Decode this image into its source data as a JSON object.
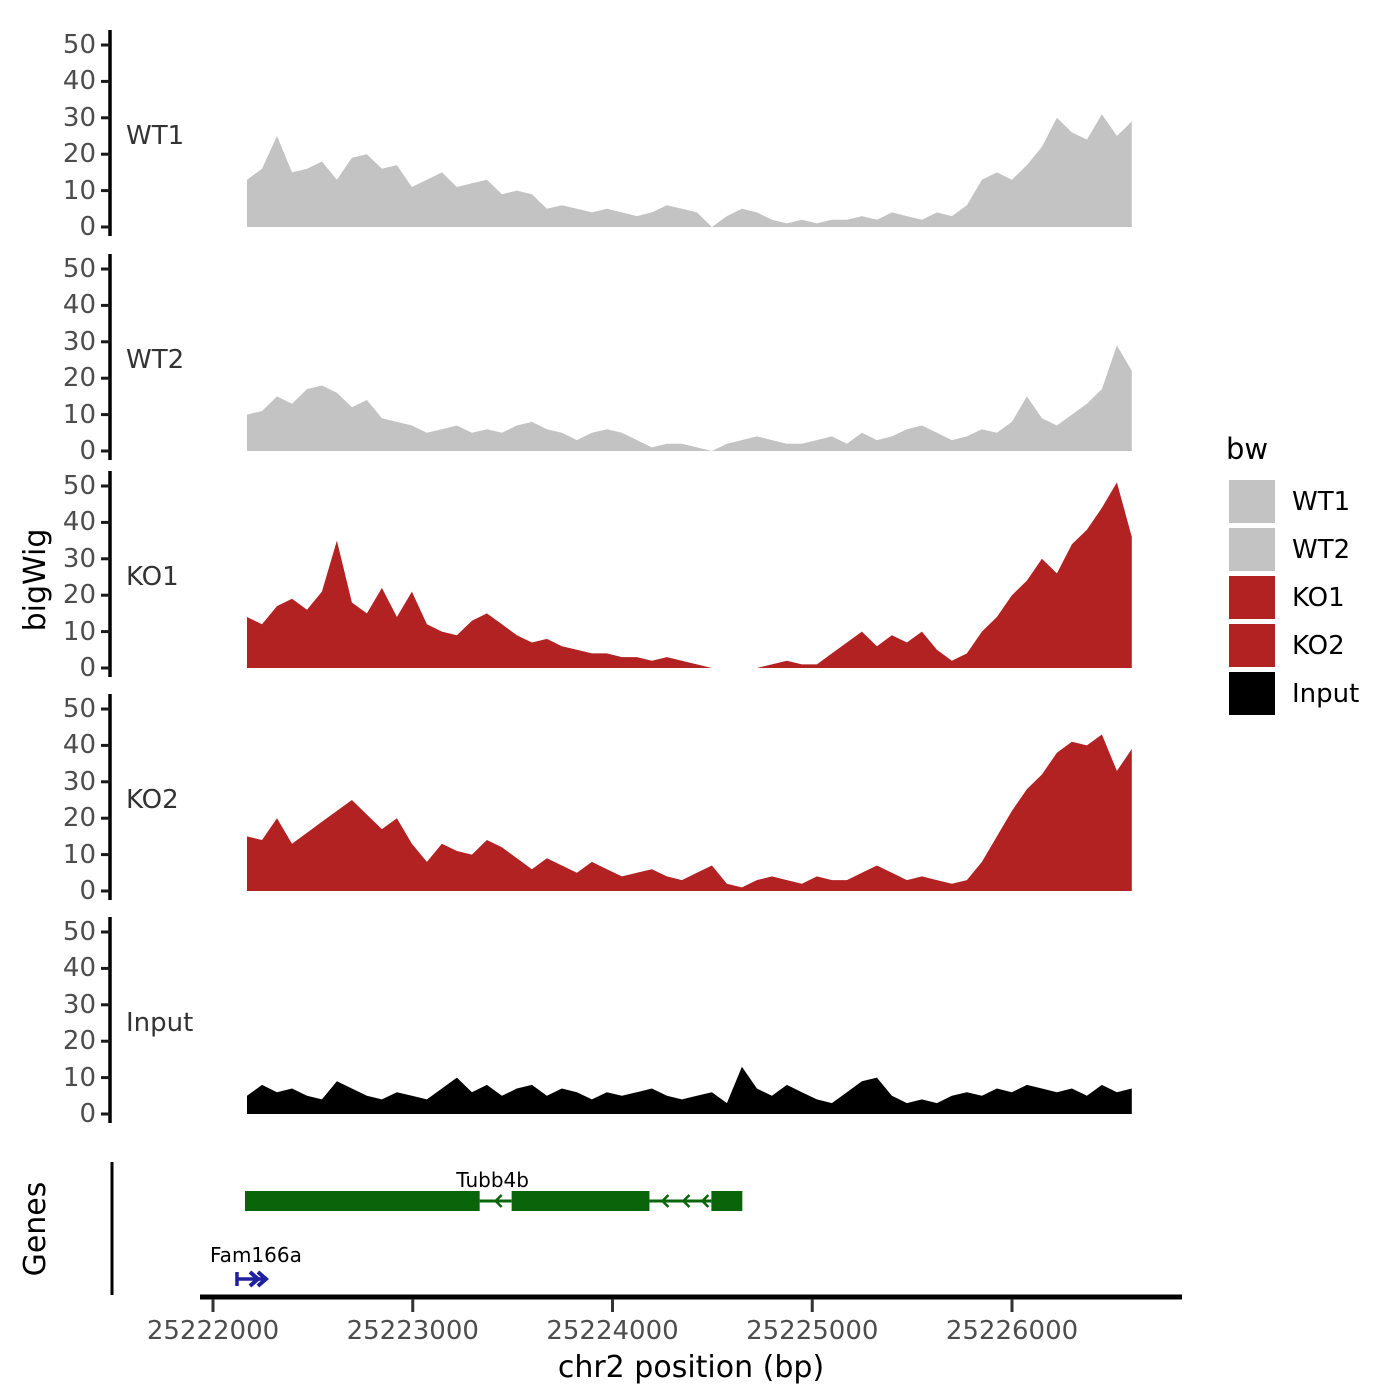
{
  "labels": {
    "bigwig": "bigWig",
    "genes": "Genes"
  },
  "x_axis": {
    "title": "chr2 position (bp)",
    "ticks": [
      {
        "bp": 25222000,
        "label": "25222000"
      },
      {
        "bp": 25223000,
        "label": "25223000"
      },
      {
        "bp": 25224000,
        "label": "25224000"
      },
      {
        "bp": 25225000,
        "label": "25225000"
      },
      {
        "bp": 25226000,
        "label": "25226000"
      }
    ]
  },
  "legend": {
    "title": "bw",
    "items": [
      {
        "label": "WT1",
        "color": "#c3c3c3"
      },
      {
        "label": "WT2",
        "color": "#c3c3c3"
      },
      {
        "label": "KO1",
        "color": "#b22222"
      },
      {
        "label": "KO2",
        "color": "#b22222"
      },
      {
        "label": "Input",
        "color": "#000000"
      }
    ]
  },
  "chart_data": {
    "type": "area",
    "title": "",
    "xlabel": "chr2 position (bp)",
    "ylabel": "bigWig",
    "ylim": [
      0,
      50
    ],
    "yticks": [
      0,
      10,
      20,
      30,
      40,
      50
    ],
    "x_start": 25222170,
    "x_end": 25226600,
    "x_tick_values": [
      25222000,
      25223000,
      25224000,
      25225000,
      25226000
    ],
    "grid": false,
    "legend_position": "right",
    "series": [
      {
        "name": "WT1",
        "color": "#c3c3c3",
        "values": [
          13,
          16,
          25,
          15,
          16,
          18,
          13,
          19,
          20,
          16,
          17,
          11,
          13,
          15,
          11,
          12,
          13,
          9,
          10,
          9,
          5,
          6,
          5,
          4,
          5,
          4,
          3,
          4,
          6,
          5,
          4,
          0,
          3,
          5,
          4,
          2,
          1,
          2,
          1,
          2,
          2,
          3,
          2,
          4,
          3,
          2,
          4,
          3,
          6,
          13,
          15,
          13,
          17,
          22,
          30,
          26,
          24,
          31,
          25,
          29
        ]
      },
      {
        "name": "WT2",
        "color": "#c3c3c3",
        "values": [
          10,
          11,
          15,
          13,
          17,
          18,
          16,
          12,
          14,
          9,
          8,
          7,
          5,
          6,
          7,
          5,
          6,
          5,
          7,
          8,
          6,
          5,
          3,
          5,
          6,
          5,
          3,
          1,
          2,
          2,
          1,
          0,
          2,
          3,
          4,
          3,
          2,
          2,
          3,
          4,
          2,
          5,
          3,
          4,
          6,
          7,
          5,
          3,
          4,
          6,
          5,
          8,
          15,
          9,
          7,
          10,
          13,
          17,
          29,
          22
        ]
      },
      {
        "name": "KO1",
        "color": "#b22222",
        "values": [
          14,
          12,
          17,
          19,
          16,
          21,
          35,
          18,
          15,
          22,
          14,
          21,
          12,
          10,
          9,
          13,
          15,
          12,
          9,
          7,
          8,
          6,
          5,
          4,
          4,
          3,
          3,
          2,
          3,
          2,
          1,
          0,
          0,
          0,
          0,
          1,
          2,
          1,
          1,
          4,
          7,
          10,
          6,
          9,
          7,
          10,
          5,
          2,
          4,
          10,
          14,
          20,
          24,
          30,
          26,
          34,
          38,
          44,
          51,
          36
        ]
      },
      {
        "name": "KO2",
        "color": "#b22222",
        "values": [
          15,
          14,
          20,
          13,
          16,
          19,
          22,
          25,
          21,
          17,
          20,
          13,
          8,
          13,
          11,
          10,
          14,
          12,
          9,
          6,
          9,
          7,
          5,
          8,
          6,
          4,
          5,
          6,
          4,
          3,
          5,
          7,
          2,
          1,
          3,
          4,
          3,
          2,
          4,
          3,
          3,
          5,
          7,
          5,
          3,
          4,
          3,
          2,
          3,
          8,
          15,
          22,
          28,
          32,
          38,
          41,
          40,
          43,
          33,
          39
        ]
      },
      {
        "name": "Input",
        "color": "#000000",
        "values": [
          5,
          8,
          6,
          7,
          5,
          4,
          9,
          7,
          5,
          4,
          6,
          5,
          4,
          7,
          10,
          6,
          8,
          5,
          7,
          8,
          5,
          7,
          6,
          4,
          6,
          5,
          6,
          7,
          5,
          4,
          5,
          6,
          3,
          13,
          7,
          5,
          8,
          6,
          4,
          3,
          6,
          9,
          10,
          5,
          3,
          4,
          3,
          5,
          6,
          5,
          7,
          6,
          8,
          7,
          6,
          7,
          5,
          8,
          6,
          7
        ]
      }
    ],
    "genes": [
      {
        "name": "Tubb4b",
        "color": "#0a650a",
        "strand": "-",
        "label_bp": 25223400,
        "exons": [
          [
            25222160,
            25223335
          ],
          [
            25223495,
            25224185
          ],
          [
            25224495,
            25224650
          ]
        ],
        "introns": [
          {
            "from": 25223335,
            "to": 25223495,
            "arrows": [
              25223415
            ]
          },
          {
            "from": 25224185,
            "to": 25224495,
            "arrows": [
              25224250,
              25224355,
              25224450
            ]
          }
        ]
      },
      {
        "name": "Fam166a",
        "color": "#2020a0",
        "strand": "+",
        "label_bp": 25222215,
        "line": [
          25222120,
          25222270
        ],
        "arrows": [
          25222225,
          25222265
        ]
      }
    ]
  }
}
